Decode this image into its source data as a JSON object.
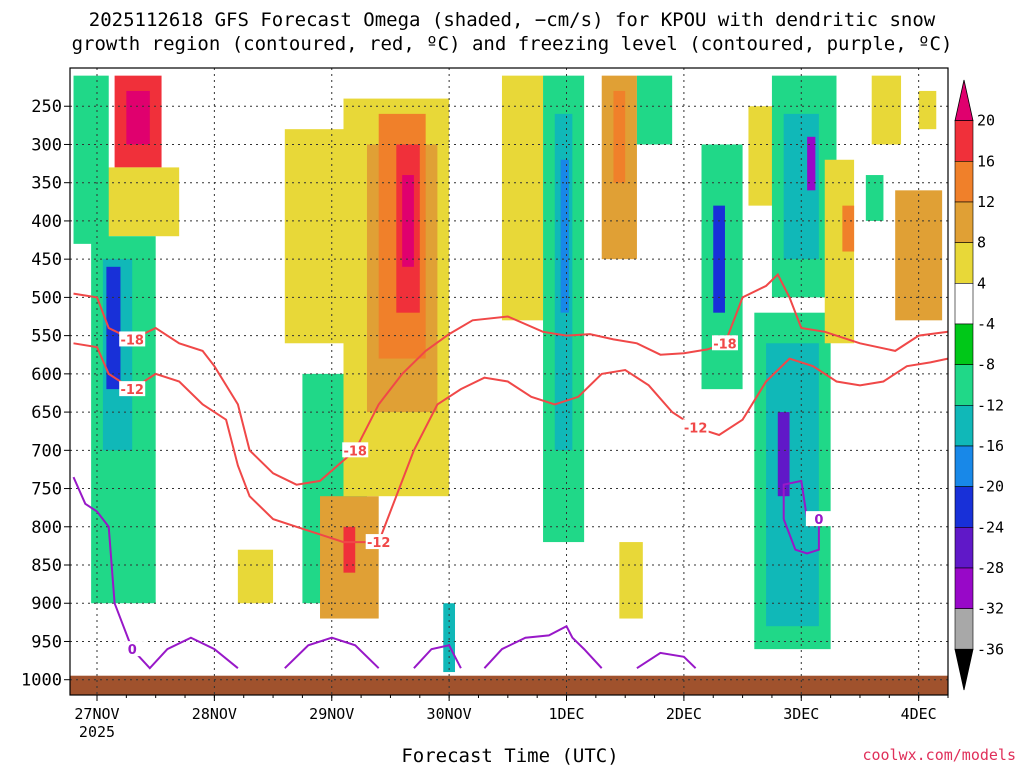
{
  "chart_data": {
    "type": "heatmap",
    "title": {
      "line1": "2025112618 GFS Forecast Omega (shaded, −cm/s) for KPOU with dendritic snow",
      "line2": "growth region (contoured, red, ºC) and freezing level (contoured, purple, ºC)"
    },
    "xlabel": "Forecast Time (UTC)",
    "ylabel": "",
    "credit": "coolwx.com/models",
    "x_ticks": [
      {
        "label": "27NOV",
        "sub": "2025",
        "day": 0
      },
      {
        "label": "28NOV",
        "sub": "",
        "day": 1
      },
      {
        "label": "29NOV",
        "sub": "",
        "day": 2
      },
      {
        "label": "30NOV",
        "sub": "",
        "day": 3
      },
      {
        "label": "1DEC",
        "sub": "",
        "day": 4
      },
      {
        "label": "2DEC",
        "sub": "",
        "day": 5
      },
      {
        "label": "3DEC",
        "sub": "",
        "day": 6
      },
      {
        "label": "4DEC",
        "sub": "",
        "day": 7
      }
    ],
    "xlim_days": [
      -0.23,
      7.25
    ],
    "y_ticks": [
      250,
      300,
      350,
      400,
      450,
      500,
      550,
      600,
      650,
      700,
      750,
      800,
      850,
      900,
      950,
      1000
    ],
    "ylim_hpa": [
      200,
      1020
    ],
    "colorbar": {
      "labels": [
        20,
        16,
        12,
        8,
        4,
        -4,
        -8,
        -12,
        -16,
        -20,
        -24,
        -28,
        -32,
        -36
      ],
      "colors": [
        "#e0006e",
        "#f0303a",
        "#f0802a",
        "#e0a035",
        "#e8d838",
        "#ffffff",
        "#00c818",
        "#20d888",
        "#10b8b8",
        "#1888e8",
        "#1830d8",
        "#6018c8",
        "#9808c8",
        "#a8a8a8",
        "#000000"
      ]
    },
    "omega_cells": [
      {
        "t0": 0.15,
        "t1": 0.55,
        "p0": 210,
        "p1": 330,
        "v": 16
      },
      {
        "t0": 0.25,
        "t1": 0.45,
        "p0": 230,
        "p1": 300,
        "v": 20
      },
      {
        "t0": 0.05,
        "t1": 0.7,
        "p0": 330,
        "p1": 420,
        "v": 4
      },
      {
        "t0": -0.2,
        "t1": 0.1,
        "p0": 210,
        "p1": 430,
        "v": -8
      },
      {
        "t0": -0.05,
        "t1": 0.5,
        "p0": 420,
        "p1": 900,
        "v": -8
      },
      {
        "t0": 0.05,
        "t1": 0.3,
        "p0": 450,
        "p1": 700,
        "v": -12
      },
      {
        "t0": 0.08,
        "t1": 0.2,
        "p0": 460,
        "p1": 620,
        "v": -20
      },
      {
        "t0": 1.75,
        "t1": 2.3,
        "p0": 600,
        "p1": 900,
        "v": -8
      },
      {
        "t0": 1.6,
        "t1": 2.1,
        "p0": 280,
        "p1": 560,
        "v": 4
      },
      {
        "t0": 1.9,
        "t1": 2.4,
        "p0": 760,
        "p1": 920,
        "v": 8
      },
      {
        "t0": 2.1,
        "t1": 2.2,
        "p0": 800,
        "p1": 860,
        "v": 16
      },
      {
        "t0": 1.2,
        "t1": 1.5,
        "p0": 830,
        "p1": 900,
        "v": 4
      },
      {
        "t0": 2.1,
        "t1": 3.0,
        "p0": 240,
        "p1": 760,
        "v": 4
      },
      {
        "t0": 2.3,
        "t1": 2.9,
        "p0": 300,
        "p1": 650,
        "v": 8
      },
      {
        "t0": 2.4,
        "t1": 2.8,
        "p0": 260,
        "p1": 580,
        "v": 12
      },
      {
        "t0": 2.55,
        "t1": 2.75,
        "p0": 300,
        "p1": 520,
        "v": 16
      },
      {
        "t0": 2.6,
        "t1": 2.7,
        "p0": 340,
        "p1": 460,
        "v": 20
      },
      {
        "t0": 2.95,
        "t1": 3.05,
        "p0": 900,
        "p1": 990,
        "v": -12
      },
      {
        "t0": 3.45,
        "t1": 3.8,
        "p0": 210,
        "p1": 530,
        "v": 4
      },
      {
        "t0": 3.8,
        "t1": 4.15,
        "p0": 210,
        "p1": 820,
        "v": -8
      },
      {
        "t0": 3.9,
        "t1": 4.05,
        "p0": 260,
        "p1": 700,
        "v": -12
      },
      {
        "t0": 3.95,
        "t1": 4.02,
        "p0": 320,
        "p1": 520,
        "v": -16
      },
      {
        "t0": 4.3,
        "t1": 4.6,
        "p0": 210,
        "p1": 450,
        "v": 8
      },
      {
        "t0": 4.4,
        "t1": 4.5,
        "p0": 230,
        "p1": 350,
        "v": 12
      },
      {
        "t0": 4.45,
        "t1": 4.65,
        "p0": 820,
        "p1": 920,
        "v": 4
      },
      {
        "t0": 4.6,
        "t1": 4.9,
        "p0": 210,
        "p1": 300,
        "v": -8
      },
      {
        "t0": 5.15,
        "t1": 5.5,
        "p0": 300,
        "p1": 620,
        "v": -8
      },
      {
        "t0": 5.25,
        "t1": 5.35,
        "p0": 380,
        "p1": 520,
        "v": -20
      },
      {
        "t0": 5.55,
        "t1": 5.8,
        "p0": 250,
        "p1": 380,
        "v": 4
      },
      {
        "t0": 5.6,
        "t1": 6.25,
        "p0": 520,
        "p1": 960,
        "v": -8
      },
      {
        "t0": 5.7,
        "t1": 6.15,
        "p0": 560,
        "p1": 930,
        "v": -12
      },
      {
        "t0": 5.8,
        "t1": 5.9,
        "p0": 650,
        "p1": 760,
        "v": -24
      },
      {
        "t0": 5.75,
        "t1": 6.3,
        "p0": 210,
        "p1": 500,
        "v": -8
      },
      {
        "t0": 5.85,
        "t1": 6.15,
        "p0": 260,
        "p1": 450,
        "v": -12
      },
      {
        "t0": 6.05,
        "t1": 6.12,
        "p0": 290,
        "p1": 360,
        "v": -28
      },
      {
        "t0": 6.2,
        "t1": 6.45,
        "p0": 320,
        "p1": 560,
        "v": 4
      },
      {
        "t0": 6.35,
        "t1": 6.45,
        "p0": 380,
        "p1": 440,
        "v": 12
      },
      {
        "t0": 6.6,
        "t1": 6.85,
        "p0": 210,
        "p1": 300,
        "v": 4
      },
      {
        "t0": 6.8,
        "t1": 7.2,
        "p0": 360,
        "p1": 530,
        "v": 8
      },
      {
        "t0": 6.55,
        "t1": 6.7,
        "p0": 340,
        "p1": 400,
        "v": -8
      },
      {
        "t0": 7.0,
        "t1": 7.15,
        "p0": 230,
        "p1": 280,
        "v": 4
      }
    ],
    "contours": [
      {
        "name": "dgz-minus-18",
        "label": "-18",
        "color": "#f04848",
        "points": [
          [
            -0.2,
            495
          ],
          [
            0.0,
            500
          ],
          [
            0.1,
            540
          ],
          [
            0.3,
            555
          ],
          [
            0.5,
            540
          ],
          [
            0.7,
            560
          ],
          [
            0.9,
            570
          ],
          [
            1.0,
            590
          ],
          [
            1.2,
            640
          ],
          [
            1.3,
            700
          ],
          [
            1.5,
            730
          ],
          [
            1.7,
            745
          ],
          [
            1.9,
            740
          ],
          [
            2.2,
            700
          ],
          [
            2.4,
            640
          ],
          [
            2.6,
            600
          ],
          [
            2.8,
            570
          ],
          [
            3.0,
            548
          ],
          [
            3.2,
            530
          ],
          [
            3.5,
            525
          ],
          [
            3.8,
            545
          ],
          [
            4.0,
            550
          ],
          [
            4.2,
            548
          ],
          [
            4.4,
            555
          ],
          [
            4.6,
            560
          ],
          [
            4.8,
            575
          ],
          [
            5.0,
            573
          ],
          [
            5.2,
            568
          ],
          [
            5.35,
            560
          ],
          [
            5.5,
            500
          ],
          [
            5.7,
            485
          ],
          [
            5.8,
            470
          ],
          [
            5.9,
            500
          ],
          [
            6.0,
            540
          ],
          [
            6.2,
            545
          ],
          [
            6.5,
            560
          ],
          [
            6.8,
            570
          ],
          [
            7.0,
            550
          ],
          [
            7.25,
            545
          ]
        ]
      },
      {
        "name": "dgz-minus-12",
        "label": "-12",
        "color": "#f04848",
        "points": [
          [
            -0.2,
            560
          ],
          [
            0.0,
            565
          ],
          [
            0.1,
            600
          ],
          [
            0.3,
            620
          ],
          [
            0.5,
            600
          ],
          [
            0.7,
            610
          ],
          [
            0.9,
            640
          ],
          [
            1.1,
            660
          ],
          [
            1.2,
            720
          ],
          [
            1.3,
            760
          ],
          [
            1.5,
            790
          ],
          [
            1.7,
            800
          ],
          [
            1.9,
            810
          ],
          [
            2.1,
            820
          ],
          [
            2.4,
            820
          ],
          [
            2.5,
            780
          ],
          [
            2.7,
            700
          ],
          [
            2.9,
            640
          ],
          [
            3.1,
            620
          ],
          [
            3.3,
            605
          ],
          [
            3.5,
            610
          ],
          [
            3.7,
            630
          ],
          [
            3.9,
            640
          ],
          [
            4.1,
            630
          ],
          [
            4.3,
            600
          ],
          [
            4.5,
            595
          ],
          [
            4.7,
            615
          ],
          [
            4.9,
            650
          ],
          [
            5.1,
            670
          ],
          [
            5.3,
            680
          ],
          [
            5.5,
            660
          ],
          [
            5.7,
            610
          ],
          [
            5.9,
            580
          ],
          [
            6.1,
            590
          ],
          [
            6.3,
            610
          ],
          [
            6.5,
            615
          ],
          [
            6.7,
            610
          ],
          [
            6.9,
            590
          ],
          [
            7.1,
            585
          ],
          [
            7.25,
            580
          ]
        ]
      },
      {
        "name": "freezing-level-0",
        "label": "0",
        "color": "#9818c8",
        "points": [
          [
            -0.2,
            735
          ],
          [
            -0.1,
            770
          ],
          [
            0.0,
            780
          ],
          [
            0.1,
            800
          ],
          [
            0.15,
            900
          ],
          [
            0.3,
            960
          ],
          [
            0.45,
            985
          ],
          [
            0.6,
            960
          ],
          [
            0.8,
            945
          ],
          [
            1.0,
            960
          ],
          [
            1.2,
            985
          ]
        ]
      },
      {
        "name": "freezing-level-0b",
        "label": "",
        "color": "#9818c8",
        "points": [
          [
            1.6,
            985
          ],
          [
            1.8,
            955
          ],
          [
            2.0,
            945
          ],
          [
            2.2,
            955
          ],
          [
            2.4,
            985
          ]
        ]
      },
      {
        "name": "freezing-level-0c",
        "label": "",
        "color": "#9818c8",
        "points": [
          [
            2.7,
            985
          ],
          [
            2.85,
            960
          ],
          [
            3.0,
            955
          ],
          [
            3.1,
            985
          ]
        ]
      },
      {
        "name": "freezing-level-0d",
        "label": "",
        "color": "#9818c8",
        "points": [
          [
            3.3,
            985
          ],
          [
            3.45,
            960
          ],
          [
            3.65,
            945
          ],
          [
            3.85,
            942
          ],
          [
            4.0,
            930
          ],
          [
            4.05,
            945
          ],
          [
            4.15,
            960
          ],
          [
            4.3,
            985
          ]
        ]
      },
      {
        "name": "freezing-level-0e",
        "label": "",
        "color": "#9818c8",
        "points": [
          [
            4.6,
            985
          ],
          [
            4.8,
            965
          ],
          [
            5.0,
            970
          ],
          [
            5.1,
            985
          ]
        ]
      },
      {
        "name": "freezing-level-0f",
        "label": "0",
        "color": "#9818c8",
        "points": [
          [
            5.85,
            790
          ],
          [
            5.85,
            745
          ],
          [
            6.0,
            740
          ],
          [
            6.05,
            790
          ],
          [
            6.15,
            790
          ],
          [
            6.15,
            830
          ],
          [
            6.05,
            835
          ],
          [
            5.95,
            830
          ],
          [
            5.85,
            790
          ]
        ]
      }
    ]
  }
}
